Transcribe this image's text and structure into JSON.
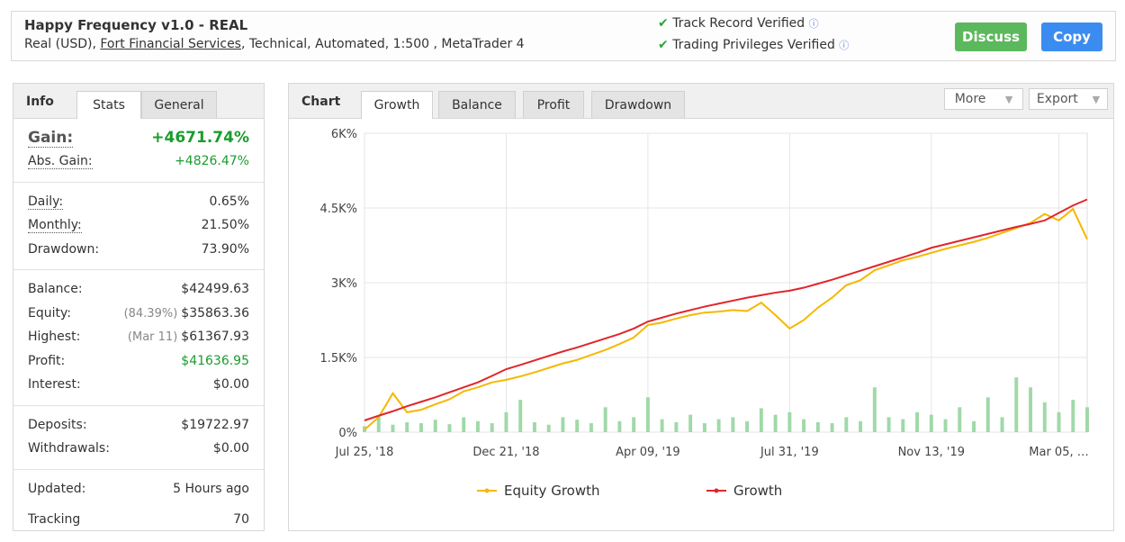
{
  "header": {
    "title": "Happy Frequency v1.0 - REAL",
    "subtitle": [
      "Real (USD), ",
      "Fort Financial Services",
      ", Technical, Automated, 1:500 , MetaTrader 4"
    ],
    "badges": [
      "Track Record Verified",
      "Trading Privileges Verified"
    ],
    "buttons": [
      "Discuss",
      "Copy"
    ]
  },
  "info": {
    "tabs": [
      "Info",
      "Stats",
      "General"
    ],
    "active": 1,
    "groups": [
      [
        {
          "label": "Gain:",
          "value": "+4671.74%",
          "green": true,
          "dotted": true,
          "big": true
        },
        {
          "label": "Abs. Gain:",
          "value": "+4826.47%",
          "green": true,
          "dotted": true
        }
      ],
      [
        {
          "label": "Daily:",
          "value": "0.65%",
          "dotted": true
        },
        {
          "label": "Monthly:",
          "value": "21.50%",
          "dotted": true
        },
        {
          "label": "Drawdown:",
          "value": "73.90%"
        }
      ],
      [
        {
          "label": "Balance:",
          "value": "$42499.63"
        },
        {
          "label": "Equity:",
          "note": "(84.39%)",
          "value": "$35863.36"
        },
        {
          "label": "Highest:",
          "note": "(Mar 11)",
          "value": "$61367.93"
        },
        {
          "label": "Profit:",
          "value": "$41636.95",
          "green": true
        },
        {
          "label": "Interest:",
          "value": "$0.00"
        }
      ],
      [
        {
          "label": "Deposits:",
          "value": "$19722.97"
        },
        {
          "label": "Withdrawals:",
          "value": "$0.00"
        }
      ],
      [
        {
          "label": "Updated:",
          "value": "5 Hours ago"
        },
        {
          "label": "Tracking",
          "value": "70"
        }
      ]
    ]
  },
  "chart_tabs": {
    "label": "Chart",
    "tabs": [
      "Growth",
      "Balance",
      "Profit",
      "Drawdown"
    ],
    "active": 0,
    "menus": [
      "More",
      "Export"
    ]
  },
  "chart_data": {
    "type": "line",
    "grid": true,
    "categories": [
      "Jul 25, '18",
      null,
      null,
      null,
      null,
      null,
      null,
      null,
      null,
      null,
      "Dec 21, '18",
      null,
      null,
      null,
      null,
      null,
      null,
      null,
      null,
      null,
      "Apr 09, '19",
      null,
      null,
      null,
      null,
      null,
      null,
      null,
      null,
      null,
      "Jul 31, '19",
      null,
      null,
      null,
      null,
      null,
      null,
      null,
      null,
      null,
      "Nov 13, '19",
      null,
      null,
      null,
      null,
      null,
      null,
      null,
      null,
      "Mar 05, …",
      null,
      null
    ],
    "ylim": [
      0,
      6000
    ],
    "yticks": [
      {
        "value": 0,
        "label": "0%"
      },
      {
        "value": 1500,
        "label": "1.5K%"
      },
      {
        "value": 3000,
        "label": "3K%"
      },
      {
        "value": 4500,
        "label": "4.5K%"
      },
      {
        "value": 6000,
        "label": "6K%"
      }
    ],
    "series": [
      {
        "name": "Equity Growth",
        "color": "#f5b800",
        "values": [
          50,
          300,
          780,
          400,
          450,
          560,
          660,
          820,
          900,
          1000,
          1050,
          1120,
          1200,
          1290,
          1380,
          1450,
          1550,
          1650,
          1770,
          1900,
          2150,
          2200,
          2280,
          2350,
          2400,
          2420,
          2450,
          2430,
          2600,
          2350,
          2080,
          2250,
          2500,
          2700,
          2950,
          3050,
          3250,
          3350,
          3450,
          3520,
          3600,
          3680,
          3750,
          3820,
          3900,
          4000,
          4100,
          4200,
          4380,
          4250,
          4480,
          3870
        ]
      },
      {
        "name": "Growth",
        "color": "#e0262b",
        "values": [
          235,
          330,
          420,
          520,
          610,
          700,
          800,
          900,
          1000,
          1130,
          1265,
          1350,
          1440,
          1530,
          1620,
          1700,
          1790,
          1880,
          1970,
          2080,
          2220,
          2300,
          2380,
          2450,
          2520,
          2580,
          2640,
          2700,
          2750,
          2800,
          2840,
          2900,
          2980,
          3060,
          3150,
          3240,
          3330,
          3420,
          3510,
          3600,
          3700,
          3770,
          3840,
          3910,
          3980,
          4050,
          4120,
          4180,
          4250,
          4400,
          4550,
          4672
        ]
      }
    ],
    "bars": {
      "color": "#9fd9a8",
      "values": [
        120,
        300,
        150,
        200,
        180,
        250,
        160,
        300,
        220,
        180,
        400,
        650,
        200,
        150,
        300,
        250,
        180,
        500,
        220,
        300,
        700,
        260,
        200,
        350,
        180,
        260,
        300,
        220,
        480,
        350,
        400,
        260,
        200,
        180,
        300,
        220,
        900,
        300,
        260,
        400,
        350,
        260,
        500,
        220,
        700,
        300,
        1100,
        900,
        600,
        400,
        650,
        500
      ]
    }
  }
}
